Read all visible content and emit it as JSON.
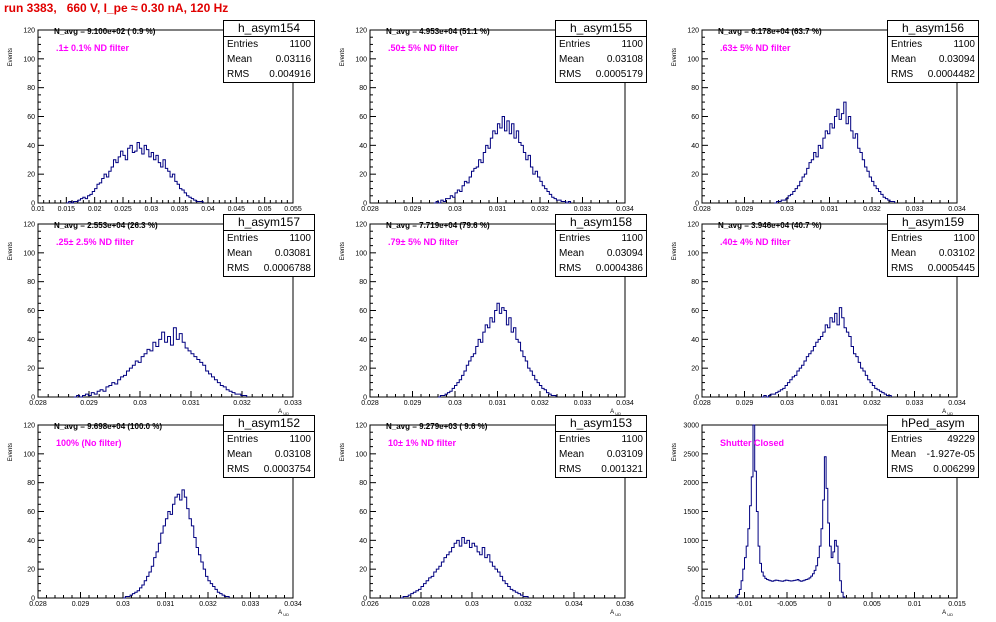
{
  "run_title": "run 3383,   660 V, I_pe ≈ 0.30 nA, 120 Hz",
  "colors": {
    "title": "#e00000",
    "histogram": "#000080",
    "filter_text": "#ff00ff"
  },
  "stat_labels": {
    "entries": "Entries",
    "mean": "Mean",
    "rms": "RMS"
  },
  "chart_data": [
    {
      "type": "histogram",
      "name": "h_asym154",
      "entries": "1100",
      "mean": "0.03116",
      "rms": "0.004916",
      "n_avg": "N_avg = 9.100e+02 ( 0.9 %)",
      "filter": ".1± 0.1% ND filter",
      "ylabel": "Events",
      "xlabel": "A_UD",
      "xlim": [
        0.01,
        0.055
      ],
      "ylim": [
        0,
        120
      ],
      "xticks": [
        "0.01",
        "0.015",
        "0.02",
        "0.025",
        "0.03",
        "0.035",
        "0.04",
        "0.045",
        "0.05",
        "0.055"
      ],
      "yticks": [
        "0",
        "20",
        "40",
        "60",
        "80",
        "100",
        "120"
      ],
      "x_start": 0.015,
      "bin_width": 0.000416,
      "counts": [
        0,
        1,
        0,
        1,
        1,
        2,
        3,
        4,
        3,
        5,
        6,
        8,
        10,
        13,
        14,
        17,
        20,
        18,
        22,
        25,
        30,
        28,
        32,
        36,
        33,
        30,
        38,
        40,
        35,
        36,
        42,
        38,
        34,
        40,
        37,
        32,
        35,
        30,
        33,
        28,
        25,
        30,
        24,
        22,
        18,
        20,
        15,
        13,
        10,
        9,
        7,
        5,
        4,
        3,
        2,
        1,
        1,
        1
      ]
    },
    {
      "type": "histogram",
      "name": "h_asym155",
      "entries": "1100",
      "mean": "0.03108",
      "rms": "0.0005179",
      "n_avg": "N_avg = 4.953e+04 (51.1 %)",
      "filter": ".50± 5% ND filter",
      "ylabel": "Events",
      "xlabel": "A_UD",
      "xlim": [
        0.028,
        0.034
      ],
      "ylim": [
        0,
        120
      ],
      "xticks": [
        "0.028",
        "0.029",
        "0.03",
        "0.031",
        "0.032",
        "0.033",
        "0.034"
      ],
      "yticks": [
        "0",
        "20",
        "40",
        "60",
        "80",
        "100",
        "120"
      ],
      "x_start": 0.0295,
      "bin_width": 5.55e-05,
      "counts": [
        0,
        1,
        0,
        2,
        1,
        3,
        3,
        5,
        4,
        7,
        9,
        8,
        12,
        15,
        14,
        18,
        22,
        24,
        25,
        30,
        28,
        35,
        40,
        38,
        45,
        50,
        48,
        55,
        52,
        60,
        50,
        57,
        48,
        55,
        45,
        50,
        42,
        40,
        35,
        30,
        33,
        25,
        20,
        22,
        18,
        15,
        12,
        10,
        8,
        6,
        4,
        3,
        2,
        2,
        1,
        1,
        0,
        1
      ]
    },
    {
      "type": "histogram",
      "name": "h_asym156",
      "entries": "1100",
      "mean": "0.03094",
      "rms": "0.0004482",
      "n_avg": "N_avg = 6.178e+04 (63.7 %)",
      "filter": ".63± 5% ND filter",
      "ylabel": "Events",
      "xlabel": "A_UD",
      "xlim": [
        0.028,
        0.034
      ],
      "ylim": [
        0,
        120
      ],
      "xticks": [
        "0.028",
        "0.029",
        "0.03",
        "0.031",
        "0.032",
        "0.033",
        "0.034"
      ],
      "yticks": [
        "0",
        "20",
        "40",
        "60",
        "80",
        "100",
        "120"
      ],
      "x_start": 0.0297,
      "bin_width": 5.45e-05,
      "counts": [
        0,
        1,
        1,
        2,
        2,
        3,
        5,
        6,
        8,
        10,
        12,
        15,
        18,
        20,
        24,
        28,
        30,
        35,
        32,
        40,
        38,
        45,
        50,
        48,
        55,
        52,
        60,
        65,
        58,
        62,
        70,
        55,
        60,
        50,
        45,
        48,
        38,
        35,
        30,
        25,
        22,
        18,
        15,
        12,
        10,
        8,
        6,
        4,
        3,
        2,
        1,
        1
      ]
    },
    {
      "type": "histogram",
      "name": "h_asym157",
      "entries": "1100",
      "mean": "0.03081",
      "rms": "0.0006788",
      "n_avg": "N_avg = 2.553e+04 (26.3 %)",
      "filter": ".25± 2.5% ND filter",
      "ylabel": "Events",
      "xlabel": "A_UD",
      "xlim": [
        0.028,
        0.033
      ],
      "ylim": [
        0,
        120
      ],
      "xticks": [
        "0.028",
        "0.029",
        "0.03",
        "0.031",
        "0.032",
        "0.033"
      ],
      "yticks": [
        "0",
        "20",
        "40",
        "60",
        "80",
        "100",
        "120"
      ],
      "x_start": 0.0287,
      "bin_width": 5.75e-05,
      "counts": [
        0,
        1,
        0,
        1,
        2,
        1,
        3,
        2,
        4,
        5,
        4,
        7,
        8,
        10,
        9,
        12,
        14,
        15,
        18,
        20,
        22,
        25,
        24,
        28,
        30,
        33,
        32,
        38,
        35,
        40,
        45,
        38,
        42,
        36,
        48,
        40,
        44,
        38,
        34,
        32,
        30,
        28,
        26,
        24,
        22,
        18,
        16,
        14,
        12,
        10,
        8,
        7,
        5,
        4,
        3,
        2,
        2,
        1,
        1
      ]
    },
    {
      "type": "histogram",
      "name": "h_asym158",
      "entries": "1100",
      "mean": "0.03094",
      "rms": "0.0004386",
      "n_avg": "N_avg = 7.719e+04 (79.6 %)",
      "filter": ".79± 5% ND filter",
      "ylabel": "Events",
      "xlabel": "A_UD",
      "xlim": [
        0.028,
        0.034
      ],
      "ylim": [
        0,
        120
      ],
      "xticks": [
        "0.028",
        "0.029",
        "0.03",
        "0.031",
        "0.032",
        "0.033",
        "0.034"
      ],
      "yticks": [
        "0",
        "20",
        "40",
        "60",
        "80",
        "100",
        "120"
      ],
      "x_start": 0.0296,
      "bin_width": 5.55e-05,
      "counts": [
        0,
        1,
        1,
        2,
        3,
        4,
        6,
        8,
        10,
        12,
        15,
        18,
        22,
        25,
        28,
        30,
        35,
        40,
        38,
        45,
        50,
        48,
        55,
        52,
        60,
        65,
        58,
        62,
        60,
        50,
        55,
        45,
        48,
        40,
        38,
        32,
        28,
        25,
        20,
        18,
        15,
        12,
        10,
        8,
        6,
        5,
        3,
        2,
        1,
        1
      ]
    },
    {
      "type": "histogram",
      "name": "h_asym159",
      "entries": "1100",
      "mean": "0.03102",
      "rms": "0.0005445",
      "n_avg": "N_avg = 3.946e+04 (40.7 %)",
      "filter": ".40± 4% ND filter",
      "ylabel": "Events",
      "xlabel": "A_UD",
      "xlim": [
        0.028,
        0.034
      ],
      "ylim": [
        0,
        120
      ],
      "xticks": [
        "0.028",
        "0.029",
        "0.03",
        "0.031",
        "0.032",
        "0.033",
        "0.034"
      ],
      "yticks": [
        "0",
        "20",
        "40",
        "60",
        "80",
        "100",
        "120"
      ],
      "x_start": 0.0294,
      "bin_width": 5.55e-05,
      "counts": [
        0,
        1,
        0,
        1,
        2,
        2,
        3,
        4,
        5,
        6,
        8,
        10,
        12,
        14,
        15,
        18,
        20,
        22,
        25,
        28,
        30,
        32,
        35,
        38,
        40,
        42,
        45,
        50,
        48,
        55,
        52,
        58,
        50,
        62,
        55,
        48,
        45,
        42,
        35,
        30,
        28,
        24,
        20,
        18,
        15,
        12,
        10,
        8,
        6,
        5,
        4,
        3,
        2,
        1,
        1
      ]
    },
    {
      "type": "histogram",
      "name": "h_asym152",
      "entries": "1100",
      "mean": "0.03108",
      "rms": "0.0003754",
      "n_avg": "N_avg = 9.698e+04 (100.0 %)",
      "filter": "100% (No filter)",
      "ylabel": "Events",
      "xlabel": "A_UD",
      "xlim": [
        0.028,
        0.034
      ],
      "ylim": [
        0,
        120
      ],
      "xticks": [
        "0.028",
        "0.029",
        "0.03",
        "0.031",
        "0.032",
        "0.033",
        "0.034"
      ],
      "yticks": [
        "0",
        "20",
        "40",
        "60",
        "80",
        "100",
        "120"
      ],
      "x_start": 0.03,
      "bin_width": 5.55e-05,
      "counts": [
        0,
        1,
        1,
        2,
        3,
        4,
        5,
        7,
        9,
        12,
        15,
        18,
        22,
        28,
        32,
        38,
        45,
        50,
        55,
        60,
        58,
        65,
        70,
        72,
        68,
        75,
        70,
        62,
        55,
        50,
        42,
        35,
        30,
        25,
        20,
        15,
        12,
        10,
        8,
        6,
        4,
        3,
        2,
        1,
        1
      ]
    },
    {
      "type": "histogram",
      "name": "h_asym153",
      "entries": "1100",
      "mean": "0.03109",
      "rms": "0.001321",
      "n_avg": "N_avg = 9.279e+03 ( 9.6 %)",
      "filter": "10± 1% ND filter",
      "ylabel": "Events",
      "xlabel": "A_UD",
      "xlim": [
        0.026,
        0.036
      ],
      "ylim": [
        0,
        120
      ],
      "xticks": [
        "0.026",
        "0.028",
        "0.03",
        "0.032",
        "0.034",
        "0.036"
      ],
      "yticks": [
        "0",
        "20",
        "40",
        "60",
        "80",
        "100",
        "120"
      ],
      "x_start": 0.0272,
      "bin_width": 0.0001,
      "counts": [
        0,
        1,
        1,
        2,
        3,
        4,
        5,
        6,
        8,
        10,
        12,
        14,
        15,
        18,
        20,
        22,
        25,
        28,
        30,
        32,
        35,
        38,
        40,
        36,
        42,
        38,
        40,
        35,
        38,
        36,
        32,
        30,
        35,
        28,
        30,
        25,
        22,
        20,
        18,
        15,
        12,
        10,
        8,
        6,
        5,
        4,
        3,
        2,
        1,
        1
      ]
    },
    {
      "type": "histogram",
      "name": "hPed_asym",
      "entries": "49229",
      "mean": "-1.927e-05",
      "rms": "0.006299",
      "n_avg": "",
      "filter": "Shutter Closed",
      "ylabel": "Events",
      "xlabel": "A_UD",
      "xlim": [
        -0.015,
        0.015
      ],
      "ylim": [
        0,
        3000
      ],
      "xticks": [
        "-0.015",
        "-0.01",
        "-0.005",
        "0",
        "0.005",
        "0.01",
        "0.015"
      ],
      "yticks": [
        "0",
        "500",
        "1000",
        "1500",
        "2000",
        "2500",
        "3000"
      ],
      "x_start": -0.0112,
      "bin_width": 0.0002,
      "counts": [
        0,
        20,
        60,
        150,
        300,
        500,
        700,
        900,
        1200,
        1600,
        2100,
        3000,
        2200,
        1500,
        900,
        600,
        450,
        380,
        340,
        320,
        310,
        300,
        290,
        300,
        310,
        305,
        300,
        295,
        290,
        300,
        310,
        305,
        300,
        295,
        300,
        305,
        310,
        320,
        300,
        290,
        300,
        310,
        320,
        330,
        350,
        380,
        420,
        480,
        560,
        700,
        900,
        1200,
        1700,
        2450,
        1900,
        1300,
        900,
        700,
        800,
        1000,
        900,
        600,
        300,
        100,
        20
      ]
    }
  ]
}
